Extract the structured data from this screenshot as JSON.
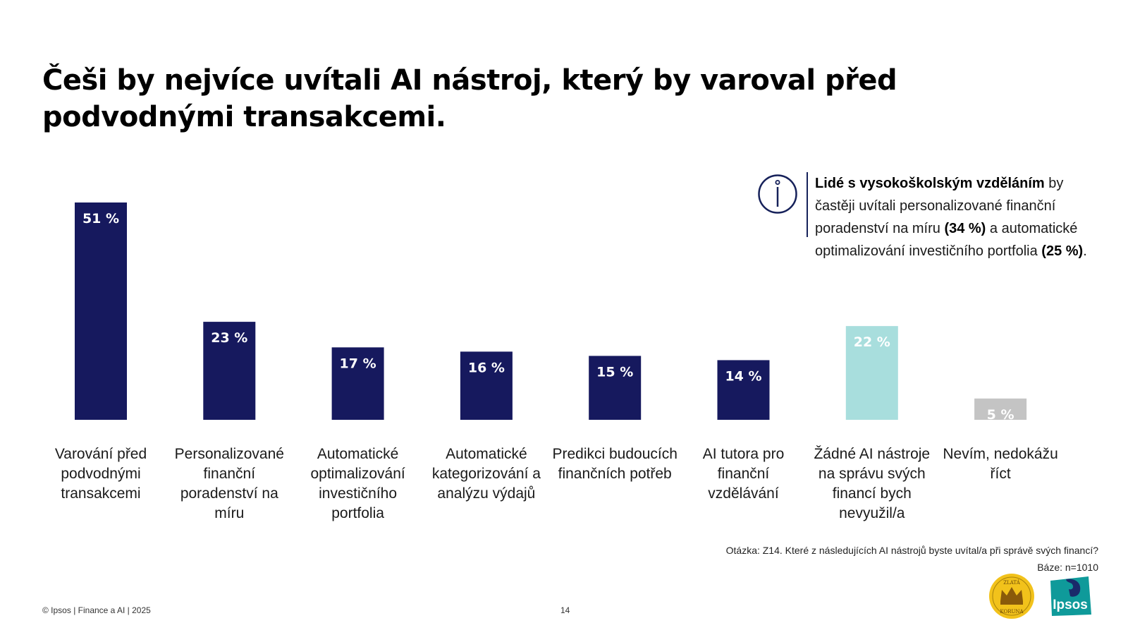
{
  "title": "Češi by nejvíce uvítali AI nástroj, který by varoval před podvodnými transakcemi.",
  "info": {
    "bold_lead": "Lidé s vysokoškolským vzděláním",
    "text_1": " by častěji uvítali personalizované finanční poradenství na míru ",
    "bold_1": "(34 %)",
    "text_2": " a automatické optimalizování investičního portfolia ",
    "bold_2": "(25 %)",
    "text_3": "."
  },
  "chart_data": {
    "type": "bar",
    "categories": [
      "Varování před podvodnými transakcemi",
      "Personalizované finanční poradenství na míru",
      "Automatické optimalizování investičního portfolia",
      "Automatické kategorizování a analýzu výdajů",
      "Predikci budoucích finančních potřeb",
      "AI tutora pro finanční vzdělávání",
      "Žádné AI nástroje na správu svých financí bych nevyužil/a",
      "Nevím, nedokážu říct"
    ],
    "values": [
      51,
      23,
      17,
      16,
      15,
      14,
      22,
      5
    ],
    "value_labels": [
      "51 %",
      "23 %",
      "17 %",
      "16 %",
      "15 %",
      "14 %",
      "22 %",
      "5 %"
    ],
    "colors": [
      "#16195e",
      "#16195e",
      "#16195e",
      "#16195e",
      "#16195e",
      "#16195e",
      "#a8dedd",
      "#c4c4c4"
    ],
    "label_color": "#ffffff",
    "ylim": [
      0,
      51
    ]
  },
  "question": "Otázka: Z14. Které z následujících AI nástrojů byste uvítal/a při správě svých financí?",
  "base": "Báze: n=1010",
  "footer": "© Ipsos | Finance a AI | 2025",
  "page_number": "14",
  "logos": {
    "koruna": {
      "line1": "ZLATÁ",
      "line2": "KORUNA"
    },
    "ipsos": "Ipsos"
  }
}
